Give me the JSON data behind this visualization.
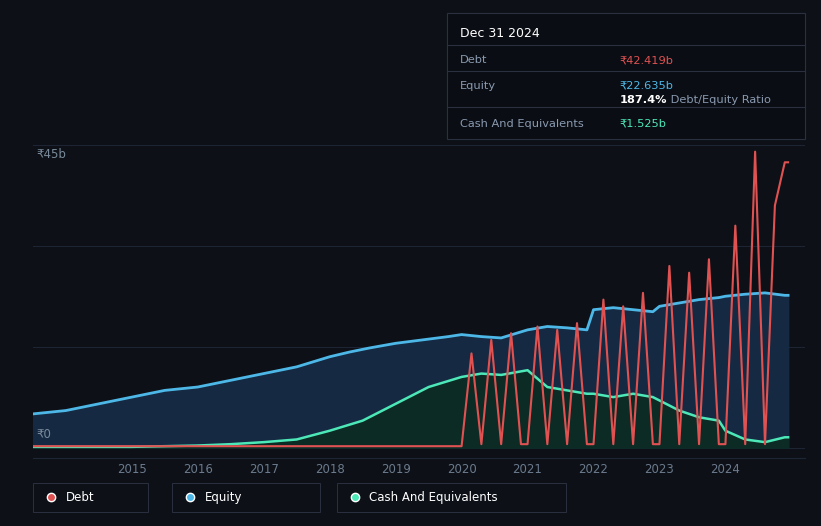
{
  "bg_color": "#0d1117",
  "plot_bg_color": "#111827",
  "tooltip_box": {
    "date": "Dec 31 2024",
    "debt_label": "Debt",
    "debt_value": "₹42.419b",
    "equity_label": "Equity",
    "equity_value": "₹22.635b",
    "ratio_bold": "187.4%",
    "ratio_rest": " Debt/Equity Ratio",
    "cash_label": "Cash And Equivalents",
    "cash_value": "₹1.525b"
  },
  "y_label_top": "₹45b",
  "y_label_bottom": "₹0",
  "x_ticks": [
    "2015",
    "2016",
    "2017",
    "2018",
    "2019",
    "2020",
    "2021",
    "2022",
    "2023",
    "2024"
  ],
  "x_tick_pos": [
    2015,
    2016,
    2017,
    2018,
    2019,
    2020,
    2021,
    2022,
    2023,
    2024
  ],
  "legend": [
    {
      "label": "Debt",
      "color": "#e05252"
    },
    {
      "label": "Equity",
      "color": "#4db8e8"
    },
    {
      "label": "Cash And Equivalents",
      "color": "#4de8b8"
    }
  ],
  "debt_color": "#e05252",
  "equity_color": "#4db8e8",
  "cash_color": "#4de8b8",
  "equity_fill_color": "#152a42",
  "cash_fill_color": "#0d2b25",
  "y_max": 47,
  "y_min": -1.5,
  "x_min": 2013.5,
  "x_max": 2025.2,
  "debt_data": {
    "x": [
      2013.5,
      2014.0,
      2014.5,
      2015.0,
      2015.5,
      2016.0,
      2016.5,
      2017.0,
      2017.5,
      2018.0,
      2018.5,
      2019.0,
      2019.5,
      2019.9,
      2020.0,
      2020.15,
      2020.3,
      2020.45,
      2020.6,
      2020.75,
      2020.9,
      2021.0,
      2021.15,
      2021.3,
      2021.45,
      2021.6,
      2021.75,
      2021.9,
      2022.0,
      2022.15,
      2022.3,
      2022.45,
      2022.6,
      2022.75,
      2022.9,
      2023.0,
      2023.15,
      2023.3,
      2023.45,
      2023.6,
      2023.75,
      2023.9,
      2024.0,
      2024.15,
      2024.3,
      2024.45,
      2024.6,
      2024.75,
      2024.9,
      2024.95
    ],
    "y": [
      0.2,
      0.2,
      0.2,
      0.2,
      0.2,
      0.2,
      0.2,
      0.2,
      0.2,
      0.2,
      0.2,
      0.2,
      0.2,
      0.2,
      0.2,
      14.0,
      0.5,
      16.0,
      0.5,
      17.0,
      0.5,
      0.5,
      18.0,
      0.5,
      17.5,
      0.5,
      18.5,
      0.5,
      0.5,
      22.0,
      0.5,
      21.0,
      0.5,
      23.0,
      0.5,
      0.5,
      27.0,
      0.5,
      26.0,
      0.5,
      28.0,
      0.5,
      0.5,
      33.0,
      0.5,
      44.0,
      0.5,
      36.0,
      42.419,
      42.419
    ]
  },
  "equity_data": {
    "x": [
      2013.5,
      2014.0,
      2014.5,
      2015.0,
      2015.5,
      2016.0,
      2016.5,
      2017.0,
      2017.5,
      2018.0,
      2018.3,
      2018.6,
      2019.0,
      2019.4,
      2019.8,
      2020.0,
      2020.3,
      2020.6,
      2021.0,
      2021.3,
      2021.6,
      2021.9,
      2022.0,
      2022.3,
      2022.6,
      2022.9,
      2023.0,
      2023.3,
      2023.6,
      2023.9,
      2024.0,
      2024.3,
      2024.6,
      2024.9,
      2024.95
    ],
    "y": [
      5.0,
      5.5,
      6.5,
      7.5,
      8.5,
      9.0,
      10.0,
      11.0,
      12.0,
      13.5,
      14.2,
      14.8,
      15.5,
      16.0,
      16.5,
      16.8,
      16.5,
      16.3,
      17.5,
      18.0,
      17.8,
      17.5,
      20.5,
      20.8,
      20.5,
      20.2,
      21.0,
      21.5,
      22.0,
      22.3,
      22.5,
      22.8,
      23.0,
      22.635,
      22.635
    ]
  },
  "cash_data": {
    "x": [
      2013.5,
      2014.0,
      2014.5,
      2015.0,
      2015.5,
      2016.0,
      2016.5,
      2017.0,
      2017.5,
      2018.0,
      2018.5,
      2019.0,
      2019.5,
      2020.0,
      2020.3,
      2020.6,
      2021.0,
      2021.3,
      2021.6,
      2021.9,
      2022.0,
      2022.3,
      2022.6,
      2022.9,
      2023.0,
      2023.3,
      2023.6,
      2023.9,
      2024.0,
      2024.3,
      2024.6,
      2024.9,
      2024.95
    ],
    "y": [
      0.1,
      0.1,
      0.1,
      0.1,
      0.2,
      0.3,
      0.5,
      0.8,
      1.2,
      2.5,
      4.0,
      6.5,
      9.0,
      10.5,
      11.0,
      10.8,
      11.5,
      9.0,
      8.5,
      8.0,
      8.0,
      7.5,
      8.0,
      7.5,
      7.0,
      5.5,
      4.5,
      4.0,
      2.5,
      1.2,
      0.8,
      1.525,
      1.525
    ]
  }
}
